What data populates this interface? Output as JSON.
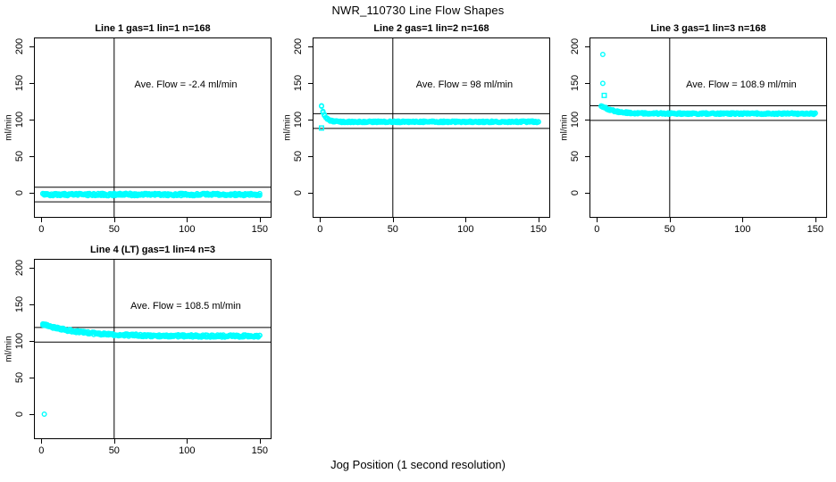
{
  "figure": {
    "suptitle": "NWR_110730  Line Flow Shapes",
    "xlabel": "Jog Position (1 second resolution)",
    "background": "#FFFFFF",
    "marker_color": "#00FFFF",
    "line_color": "#000000"
  },
  "chart_data": [
    {
      "type": "scatter",
      "panel": 1,
      "title": "Line 1 gas=1 lin=1 n=168",
      "annotation": "Ave. Flow =  -2.4  ml/min",
      "ave_flow_ml_min": -2.4,
      "gas": 1,
      "lin": 1,
      "n": 168,
      "ylabel": "ml/min",
      "x_ticks": [
        0,
        50,
        100,
        150
      ],
      "y_ticks": [
        0,
        50,
        100,
        150,
        200
      ],
      "xlim": [
        -4.5,
        157.5
      ],
      "ylim": [
        -33,
        211
      ],
      "grid": false,
      "vline_x": 50,
      "hlines": [
        7.6,
        -12.4
      ],
      "band": {
        "x_start": 1,
        "x_end": 150,
        "base": -2.4,
        "amplitude": 0,
        "tau": 5,
        "noise": 1.7
      },
      "extra_points": []
    },
    {
      "type": "scatter",
      "panel": 2,
      "title": "Line 2 gas=1 lin=2 n=168",
      "annotation": "Ave. Flow =  98  ml/min",
      "ave_flow_ml_min": 98,
      "gas": 1,
      "lin": 2,
      "n": 168,
      "ylabel": "ml/min",
      "x_ticks": [
        0,
        50,
        100,
        150
      ],
      "y_ticks": [
        0,
        50,
        100,
        150,
        200
      ],
      "xlim": [
        -4.5,
        157.5
      ],
      "ylim": [
        -33,
        211
      ],
      "grid": false,
      "vline_x": 50,
      "hlines": [
        108,
        88
      ],
      "band": {
        "x_start": 1,
        "x_end": 150,
        "base": 97,
        "amplitude": 21,
        "tau": 2.4,
        "noise": 1.1
      },
      "extra_points": [
        {
          "x": 1,
          "y": 88.5,
          "shape": "square"
        }
      ]
    },
    {
      "type": "scatter",
      "panel": 3,
      "title": "Line 3 gas=1 lin=3 n=168",
      "annotation": "Ave. Flow =  108.9  ml/min",
      "ave_flow_ml_min": 108.9,
      "gas": 1,
      "lin": 3,
      "n": 168,
      "ylabel": "ml/min",
      "x_ticks": [
        0,
        50,
        100,
        150
      ],
      "y_ticks": [
        0,
        50,
        100,
        150,
        200
      ],
      "xlim": [
        -4.5,
        157.5
      ],
      "ylim": [
        -33,
        211
      ],
      "grid": false,
      "vline_x": 50,
      "hlines": [
        118.9,
        98.9
      ],
      "band": {
        "x_start": 3,
        "x_end": 150,
        "base": 108.2,
        "amplitude": 11,
        "tau": 8,
        "noise": 1.1
      },
      "extra_points": [
        {
          "x": 4,
          "y": 189,
          "shape": "circle"
        },
        {
          "x": 4,
          "y": 149.5,
          "shape": "circle"
        },
        {
          "x": 5,
          "y": 133,
          "shape": "square"
        }
      ]
    },
    {
      "type": "scatter",
      "panel": 4,
      "title": "Line 4 (LT) gas=1 lin=4 n=3",
      "annotation": "Ave. Flow =  108.5  ml/min",
      "ave_flow_ml_min": 108.5,
      "gas": 1,
      "lin": 4,
      "n": 3,
      "ylabel": "ml/min",
      "x_ticks": [
        0,
        50,
        100,
        150
      ],
      "y_ticks": [
        0,
        50,
        100,
        150,
        200
      ],
      "xlim": [
        -4.5,
        157.5
      ],
      "ylim": [
        -33,
        211
      ],
      "grid": false,
      "vline_x": 50,
      "hlines": [
        118.5,
        98.5
      ],
      "band": {
        "x_start": 1,
        "x_end": 150,
        "base": 106.6,
        "amplitude": 16.5,
        "tau": 24,
        "noise": 1.6
      },
      "extra_points": [
        {
          "x": 1,
          "y": 122,
          "shape": "plus"
        },
        {
          "x": 2,
          "y": 0,
          "shape": "circle"
        }
      ]
    }
  ]
}
